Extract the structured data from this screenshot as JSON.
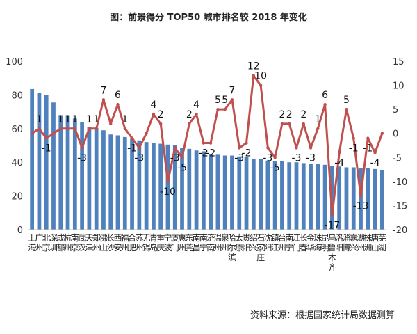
{
  "title": "图：前景得分 TOP50 城市排名较 2018 年变化",
  "source": "资料来源：根据国家统计局数据测算",
  "chart_data": {
    "type": "bar+line",
    "title": "图：前景得分 TOP50 城市排名较 2018 年变化",
    "categories": [
      "上海",
      "广州",
      "北京",
      "深圳",
      "成都",
      "杭州",
      "南京",
      "武汉",
      "天津",
      "郑州",
      "佛山",
      "长沙",
      "西安",
      "福州",
      "合肥",
      "苏州",
      "无锡",
      "青岛",
      "重庆",
      "宁波",
      "厦门",
      "惠州",
      "东莞",
      "南昌",
      "南宁",
      "济南",
      "温州",
      "泉州",
      "哈尔滨",
      "太原",
      "贵阳",
      "绍兴",
      "石家庄",
      "沈阳",
      "镇江",
      "台州",
      "南宁",
      "江门",
      "长春",
      "金华",
      "珠海",
      "昆明",
      "乌鲁木齐",
      "洛阳",
      "淄博",
      "嘉兴",
      "湖州",
      "株洲",
      "唐山",
      "芜湖"
    ],
    "series": [
      {
        "type": "bar",
        "axis": "left",
        "values": [
          83.5,
          81,
          80,
          75.5,
          68,
          68,
          66,
          64,
          61,
          60.5,
          59,
          56.5,
          56,
          55,
          54,
          53,
          52,
          51.5,
          51,
          50.5,
          50,
          48.5,
          48,
          47,
          46.5,
          45,
          44.5,
          44,
          44,
          43.5,
          43,
          42,
          42,
          41,
          40.5,
          40.5,
          40,
          40,
          39.5,
          39,
          39,
          38.5,
          38,
          37.5,
          37,
          37,
          36.5,
          36.5,
          36,
          35.5
        ]
      },
      {
        "type": "line",
        "axis": "right",
        "values": [
          0,
          1,
          -1,
          0,
          1,
          1,
          1,
          -3,
          1,
          1,
          7,
          2,
          6,
          1,
          -1,
          -3,
          0,
          4,
          2,
          -10,
          -3,
          -5,
          2,
          4,
          -2,
          -2,
          5,
          5,
          7,
          -3,
          -2,
          12,
          10,
          -3,
          -5,
          2,
          2,
          -3,
          2,
          -3,
          1,
          6,
          -17,
          -4,
          5,
          -1,
          -13,
          -1,
          -4,
          0
        ]
      }
    ],
    "value_labels": [
      "",
      "1",
      "-1",
      "",
      "1",
      "1",
      "1",
      "-3",
      "1",
      "1",
      "7",
      "",
      "6",
      "1",
      "-1",
      "-3",
      "",
      "4",
      "2",
      "-10",
      "-3",
      "-5",
      "2",
      "4",
      "-2",
      "-2",
      "5",
      "5",
      "7",
      "-3",
      "-2",
      "12",
      "10",
      "-3",
      "-5",
      "2",
      "2",
      "-3",
      "2",
      "-3",
      "1",
      "6",
      "-17",
      "-4",
      "5",
      "-1",
      "-13",
      "-1",
      "-4",
      ""
    ],
    "left_axis": {
      "min": 0,
      "max": 100,
      "ticks": [
        0,
        20,
        40,
        60,
        80,
        100
      ]
    },
    "right_axis": {
      "min": -20,
      "max": 15,
      "ticks": [
        15,
        10,
        5,
        0,
        -5,
        -10,
        -15,
        -20
      ]
    },
    "bar_color": "#4f81bd",
    "line_color": "#c0504d"
  }
}
